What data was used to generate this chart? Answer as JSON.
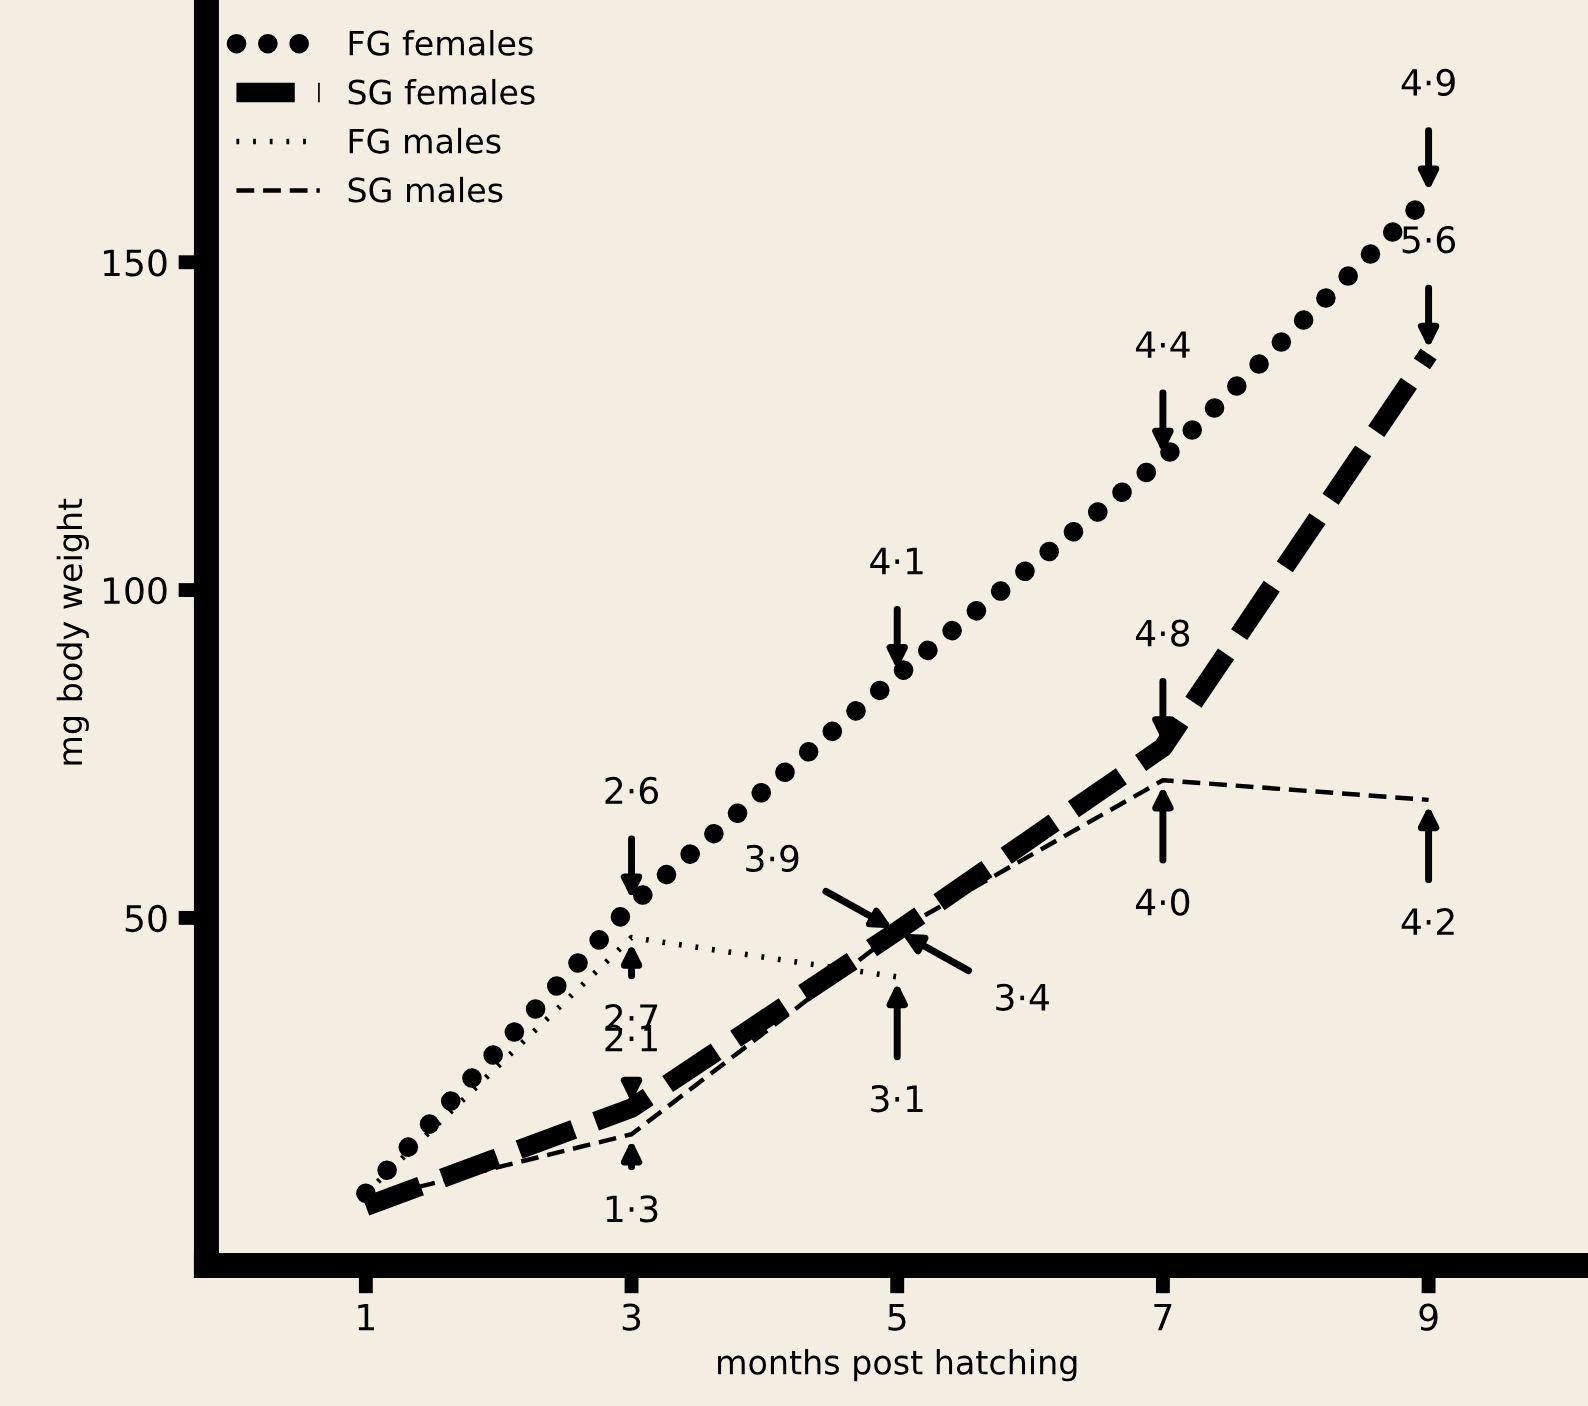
{
  "chart_data": {
    "type": "line",
    "xlabel": "months post hatching",
    "ylabel": "mg body weight",
    "x": [
      1,
      3,
      5,
      7,
      9
    ],
    "series": [
      {
        "name": "FG females",
        "color": "#000000",
        "line_style": "dotted",
        "values": [
          8,
          52,
          87,
          120,
          160
        ]
      },
      {
        "name": "SG females",
        "color": "#000000",
        "line_style": "dashed",
        "values": [
          6,
          21,
          48,
          76,
          136
        ]
      },
      {
        "name": "FG males",
        "color": "#000000",
        "line_style": "dotted",
        "values": [
          8,
          47,
          41,
          null,
          null
        ]
      },
      {
        "name": "SG males",
        "color": "#000000",
        "line_style": "dashed",
        "values": [
          7,
          17,
          48,
          71,
          68
        ]
      }
    ],
    "xlim": [
      -0.2,
      10.2
    ],
    "ylim": [
      -3,
      190
    ],
    "xticks": [
      1,
      3,
      5,
      7,
      9
    ],
    "yticks": [
      50,
      100,
      150
    ],
    "grid": false,
    "legend": "top left",
    "annotations": [
      {
        "text": "2·6",
        "x": 3,
        "y": 52
      },
      {
        "text": "2·7",
        "x": 3,
        "y": 47
      },
      {
        "text": "2·1",
        "x": 3,
        "y": 21
      },
      {
        "text": "1·3",
        "x": 3,
        "y": 17
      },
      {
        "text": "4·1",
        "x": 5,
        "y": 87
      },
      {
        "text": "3·9",
        "x": 5,
        "y": 48
      },
      {
        "text": "3·4",
        "x": 5,
        "y": 48
      },
      {
        "text": "3·1",
        "x": 5,
        "y": 41
      },
      {
        "text": "4·4",
        "x": 7,
        "y": 120
      },
      {
        "text": "4·8",
        "x": 7,
        "y": 76
      },
      {
        "text": "4·0",
        "x": 7,
        "y": 71
      },
      {
        "text": "4·9",
        "x": 9,
        "y": 160
      },
      {
        "text": "5·6",
        "x": 9,
        "y": 136
      },
      {
        "text": "4·2",
        "x": 9,
        "y": 68
      }
    ]
  }
}
